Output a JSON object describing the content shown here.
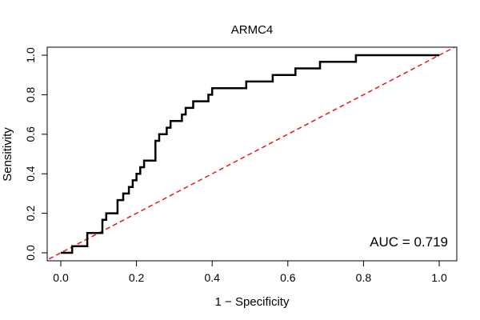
{
  "chart_data": {
    "type": "line",
    "title": "ARMC4",
    "xlabel": "1 − Specificity",
    "ylabel": "Sensitivity",
    "xlim": [
      0,
      1
    ],
    "ylim": [
      0,
      1
    ],
    "x_ticks": [
      "0.0",
      "0.2",
      "0.4",
      "0.6",
      "0.8",
      "1.0"
    ],
    "y_ticks": [
      "0.0",
      "0.2",
      "0.4",
      "0.6",
      "0.8",
      "1.0"
    ],
    "grid": false,
    "annotation": "AUC = 0.719",
    "annotation_position": "bottom-right",
    "colors": {
      "roc": "#000000",
      "reference": "#e31a1c"
    },
    "series": [
      {
        "type": "step",
        "x": [
          0.0,
          0.03,
          0.03,
          0.07,
          0.07,
          0.11,
          0.11,
          0.12,
          0.12,
          0.15,
          0.15,
          0.165,
          0.165,
          0.18,
          0.18,
          0.19,
          0.19,
          0.2,
          0.2,
          0.21,
          0.21,
          0.22,
          0.22,
          0.25,
          0.25,
          0.26,
          0.26,
          0.28,
          0.28,
          0.29,
          0.29,
          0.32,
          0.32,
          0.33,
          0.33,
          0.35,
          0.35,
          0.39,
          0.39,
          0.4,
          0.4,
          0.49,
          0.49,
          0.56,
          0.56,
          0.62,
          0.62,
          0.685,
          0.685,
          0.78,
          0.78,
          1.0
        ],
        "y": [
          0.0,
          0.0,
          0.033,
          0.033,
          0.1,
          0.1,
          0.167,
          0.167,
          0.2,
          0.2,
          0.267,
          0.267,
          0.3,
          0.3,
          0.333,
          0.333,
          0.367,
          0.367,
          0.4,
          0.4,
          0.433,
          0.433,
          0.467,
          0.467,
          0.567,
          0.567,
          0.6,
          0.6,
          0.633,
          0.633,
          0.667,
          0.667,
          0.7,
          0.7,
          0.733,
          0.733,
          0.767,
          0.767,
          0.8,
          0.8,
          0.833,
          0.833,
          0.867,
          0.867,
          0.9,
          0.9,
          0.933,
          0.933,
          0.967,
          0.967,
          1.0,
          1.0
        ]
      },
      {
        "type": "reference",
        "x": [
          -0.05,
          1.05
        ],
        "y": [
          -0.05,
          1.05
        ]
      }
    ]
  }
}
